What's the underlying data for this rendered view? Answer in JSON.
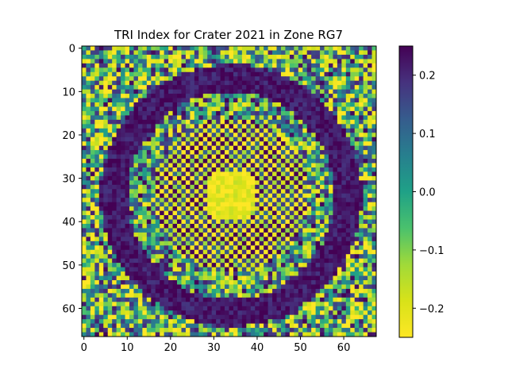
{
  "chart_data": {
    "type": "heatmap",
    "title": "TRI Index for Crater 2021 in Zone RG7",
    "xlabel": "",
    "ylabel": "",
    "grid": false,
    "colormap": "viridis_r",
    "rows": 67,
    "cols": 68,
    "xlim": [
      -0.5,
      67.5
    ],
    "ylim": [
      66.5,
      -0.5
    ],
    "x_ticks": [
      0,
      10,
      20,
      30,
      40,
      50,
      60
    ],
    "y_ticks": [
      0,
      10,
      20,
      30,
      40,
      50,
      60
    ],
    "x_tick_labels": [
      "0",
      "10",
      "20",
      "30",
      "40",
      "50",
      "60"
    ],
    "y_tick_labels": [
      "0",
      "10",
      "20",
      "30",
      "40",
      "50",
      "60"
    ],
    "colorbar": {
      "vmin": -0.25,
      "vmax": 0.25,
      "ticks": [
        0.2,
        0.1,
        0.0,
        -0.1,
        -0.2
      ],
      "tick_labels": [
        "0.2",
        "0.1",
        "0.0",
        "−0.1",
        "−0.2"
      ]
    },
    "crater_center": [
      34,
      34
    ],
    "rim_radius": 27,
    "inner_rim_radius": 18,
    "value_range": [
      -0.25,
      0.25
    ]
  }
}
